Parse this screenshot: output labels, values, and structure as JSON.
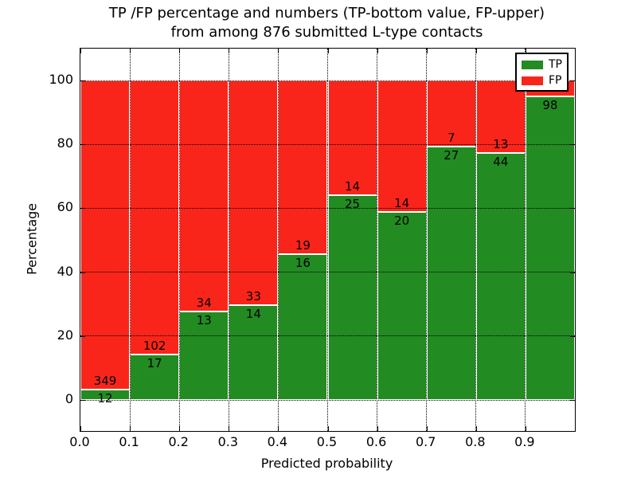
{
  "title": {
    "line1": "TP /FP percentage and numbers (TP-bottom value, FP-upper)",
    "line2": "from among 876 submitted L-type contacts"
  },
  "axes": {
    "xlabel": "Predicted probability",
    "ylabel": "Percentage"
  },
  "colors": {
    "tp": "#228b22",
    "fp": "#fa251a",
    "bar_edge": "#ffffff",
    "grid": "#000000",
    "background": "#ffffff"
  },
  "legend": {
    "entries": [
      {
        "label": "TP",
        "color": "#228b22"
      },
      {
        "label": "FP",
        "color": "#fa251a"
      }
    ]
  },
  "chart_data": {
    "type": "bar",
    "stacked": true,
    "title": "TP /FP percentage and numbers (TP-bottom value, FP-upper) from among 876 submitted L-type contacts",
    "xlabel": "Predicted probability",
    "ylabel": "Percentage",
    "xlim": [
      0.0,
      1.0
    ],
    "ylim": [
      -10,
      110
    ],
    "grid": true,
    "legend_position": "upper right",
    "x_tick_labels": [
      "0.0",
      "0.1",
      "0.2",
      "0.3",
      "0.4",
      "0.5",
      "0.6",
      "0.7",
      "0.8",
      "0.9"
    ],
    "y_ticks": [
      0,
      20,
      40,
      60,
      80,
      100
    ],
    "bin_width": 0.1,
    "bin_starts": [
      0.0,
      0.1,
      0.2,
      0.3,
      0.4,
      0.5,
      0.6,
      0.7,
      0.8,
      0.9
    ],
    "series": [
      {
        "name": "TP",
        "counts": [
          12,
          17,
          13,
          14,
          16,
          25,
          20,
          27,
          44,
          98
        ]
      },
      {
        "name": "FP",
        "counts": [
          349,
          102,
          34,
          33,
          19,
          14,
          14,
          7,
          13,
          null
        ]
      }
    ],
    "tp_percent": [
      3.3,
      14.3,
      27.7,
      29.8,
      45.7,
      64.1,
      58.8,
      79.4,
      77.2,
      95.1
    ],
    "fp_top_percent": 100,
    "tp_labels": [
      "12",
      "17",
      "13",
      "14",
      "16",
      "25",
      "20",
      "27",
      "44",
      "98"
    ],
    "fp_labels": [
      "349",
      "102",
      "34",
      "33",
      "19",
      "14",
      "14",
      "7",
      "13",
      ""
    ]
  }
}
